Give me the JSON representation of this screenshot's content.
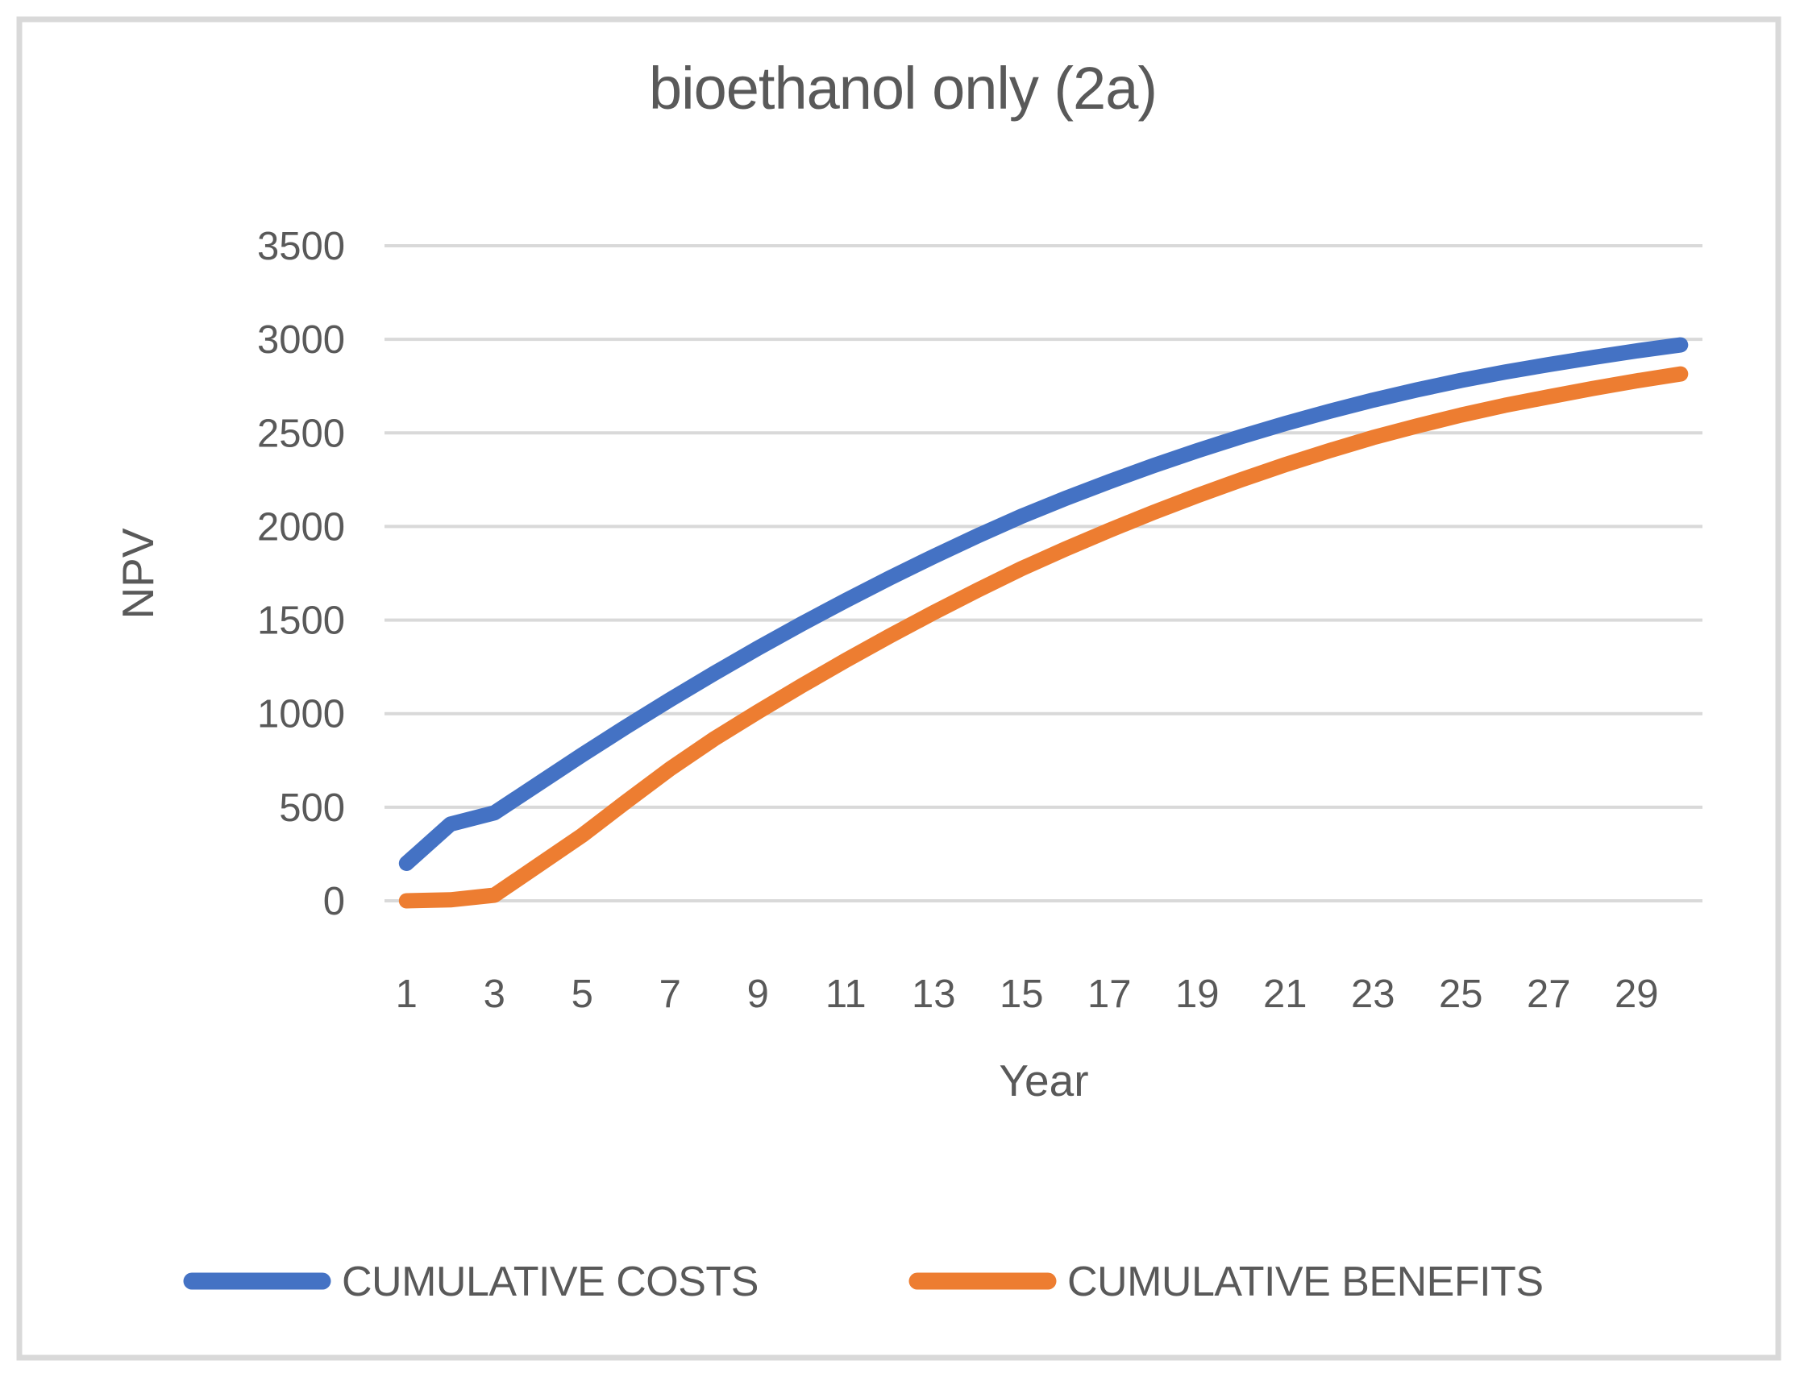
{
  "title": "bioethanol only (2a)",
  "colors": {
    "series_costs": "#4472C4",
    "series_benefits": "#ED7D31",
    "gridline": "#D9D9D9",
    "text": "#595959",
    "border": "#D9D9D9",
    "background": "#FFFFFF"
  },
  "chart_data": {
    "type": "line",
    "title": "bioethanol only (2a)",
    "xlabel": "Year",
    "ylabel": "NPV",
    "ylim": [
      0,
      3500
    ],
    "y_ticks": [
      0,
      500,
      1000,
      1500,
      2000,
      2500,
      3000,
      3500
    ],
    "x": [
      1,
      2,
      3,
      4,
      5,
      6,
      7,
      8,
      9,
      10,
      11,
      12,
      13,
      14,
      15,
      16,
      17,
      18,
      19,
      20,
      21,
      22,
      23,
      24,
      25,
      26,
      27,
      28,
      29,
      30
    ],
    "x_tick_labels": [
      1,
      3,
      5,
      7,
      9,
      11,
      13,
      15,
      17,
      19,
      21,
      23,
      25,
      27,
      29
    ],
    "grid": true,
    "legend_position": "bottom",
    "series": [
      {
        "name": "CUMULATIVE COSTS",
        "color": "#4472C4",
        "values": [
          200,
          410,
          470,
          625,
          780,
          930,
          1075,
          1215,
          1350,
          1480,
          1605,
          1725,
          1840,
          1950,
          2055,
          2150,
          2240,
          2325,
          2405,
          2480,
          2550,
          2615,
          2675,
          2730,
          2780,
          2825,
          2865,
          2903,
          2938,
          2970
        ]
      },
      {
        "name": "CUMULATIVE BENEFITS",
        "color": "#ED7D31",
        "values": [
          0,
          5,
          30,
          190,
          350,
          530,
          705,
          865,
          1010,
          1150,
          1285,
          1415,
          1540,
          1660,
          1775,
          1880,
          1980,
          2075,
          2165,
          2250,
          2330,
          2405,
          2475,
          2537,
          2595,
          2647,
          2693,
          2737,
          2778,
          2815
        ]
      }
    ]
  }
}
